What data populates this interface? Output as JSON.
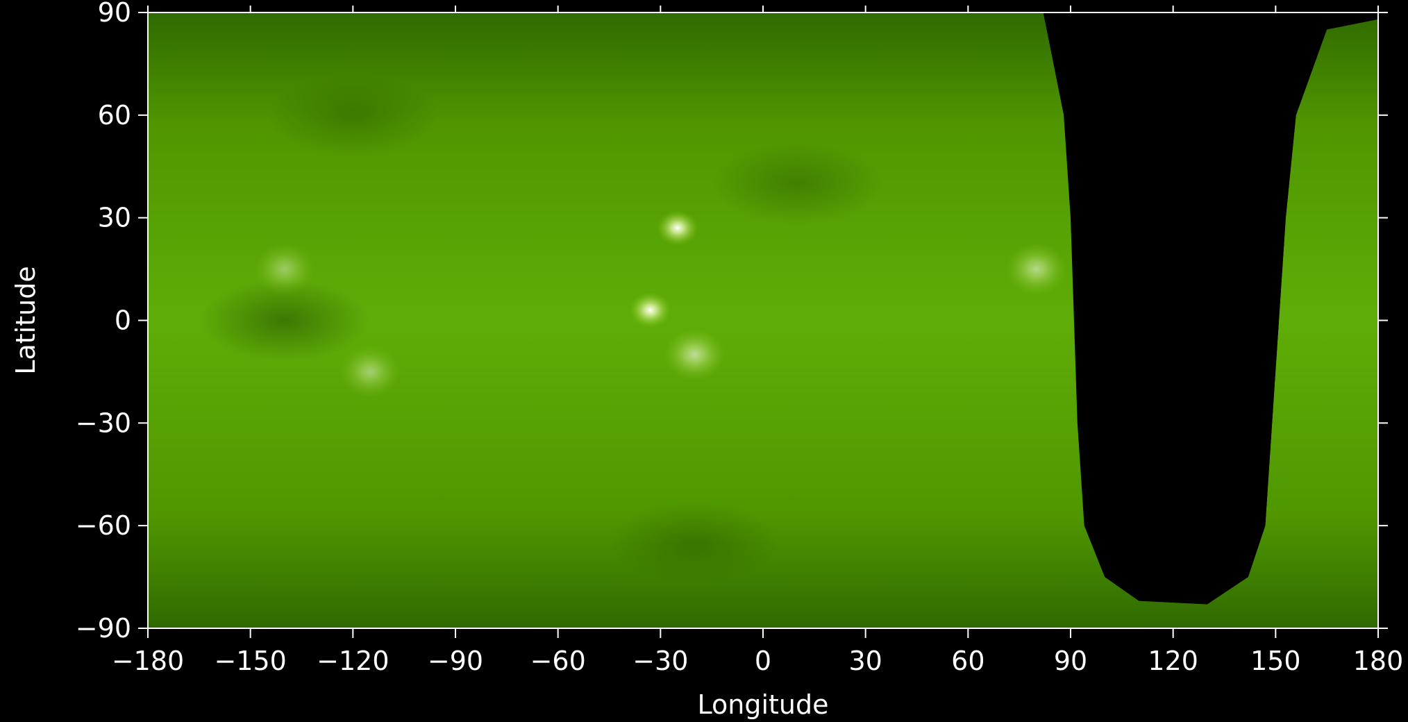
{
  "chart_data": {
    "type": "heatmap",
    "title": "",
    "xlabel": "Longitude",
    "ylabel": "Latitude",
    "xlim": [
      -180,
      180
    ],
    "ylim": [
      -90,
      90
    ],
    "x_ticks": [
      -180,
      -150,
      -120,
      -90,
      -60,
      -30,
      0,
      30,
      60,
      90,
      120,
      150,
      180
    ],
    "y_ticks": [
      90,
      60,
      30,
      0,
      -30,
      -60,
      -90
    ],
    "x_tick_labels": [
      "−180",
      "−150",
      "−120",
      "−90",
      "−60",
      "−30",
      "0",
      "30",
      "60",
      "90",
      "120",
      "150",
      "180"
    ],
    "y_tick_labels": [
      "90",
      "60",
      "30",
      "0",
      "−30",
      "−60",
      "−90"
    ],
    "colormap": [
      "#000000",
      "#1f4a00",
      "#3d7f00",
      "#5aa700",
      "#86c818",
      "#d8f0a0",
      "#ffffff"
    ],
    "background_color": "#000000",
    "axis_color": "#ffffff",
    "grid": false,
    "bright_features": [
      {
        "lon": -33,
        "lat": 3,
        "intensity": 1.0
      },
      {
        "lon": -20,
        "lat": -10,
        "intensity": 0.6
      },
      {
        "lon": -25,
        "lat": 27,
        "intensity": 1.0
      },
      {
        "lon": 80,
        "lat": 15,
        "intensity": 0.55
      },
      {
        "lon": -115,
        "lat": -15,
        "intensity": 0.45
      },
      {
        "lon": -140,
        "lat": 15,
        "intensity": 0.4
      }
    ],
    "dark_features": [
      {
        "lon": -140,
        "lat": 0,
        "intensity": 0.6
      },
      {
        "lon": -120,
        "lat": 60,
        "intensity": 0.4
      },
      {
        "lon": 10,
        "lat": 40,
        "intensity": 0.4
      },
      {
        "lon": -20,
        "lat": -65,
        "intensity": 0.4
      }
    ],
    "no_data_region": {
      "color": "#000000",
      "left_edge": [
        [
          82,
          90
        ],
        [
          88,
          60
        ],
        [
          90,
          30
        ],
        [
          91,
          0
        ],
        [
          92,
          -30
        ],
        [
          94,
          -60
        ],
        [
          100,
          -75
        ],
        [
          110,
          -82
        ],
        [
          130,
          -83
        ],
        [
          142,
          -75
        ],
        [
          147,
          -60
        ],
        [
          149,
          -30
        ],
        [
          151,
          0
        ],
        [
          153,
          30
        ],
        [
          156,
          60
        ],
        [
          165,
          85
        ],
        [
          180,
          88
        ]
      ]
    }
  }
}
